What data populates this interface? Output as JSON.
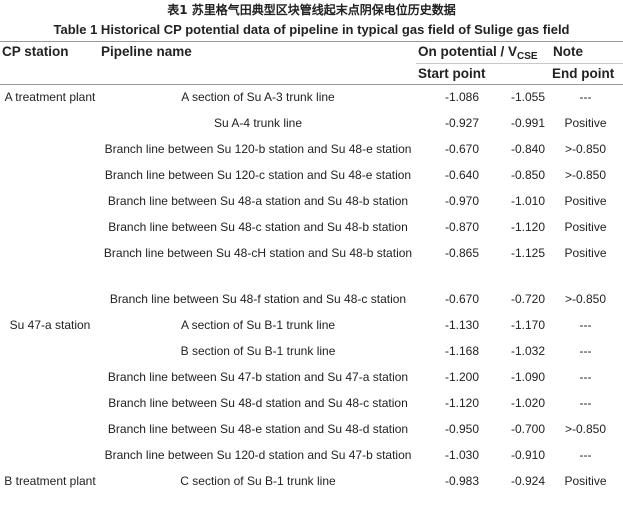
{
  "title_cn": "表1 苏里格气田典型区块管线起末点阴保电位历史数据",
  "title_en": "Table 1 Historical CP potential data of pipeline in typical gas field of Sulige gas field",
  "header": {
    "cp_station": "CP station",
    "pipeline_name": "Pipeline name",
    "on_potential_prefix": "On potential / V",
    "on_potential_sub": "CSE",
    "note": "Note",
    "start_point": "Start point",
    "end_point": "End point"
  },
  "rows": [
    {
      "station": "A treatment plant",
      "name": "A section of Su A-3 trunk line",
      "start": "-1.086",
      "end": "-1.055",
      "note": "---"
    },
    {
      "station": "",
      "name": "Su A-4 trunk line",
      "start": "-0.927",
      "end": "-0.991",
      "note": "Positive"
    },
    {
      "station": "",
      "name": "Branch line between Su 120-b station and Su 48-e station",
      "start": "-0.670",
      "end": "-0.840",
      "note": ">-0.850"
    },
    {
      "station": "",
      "name": "Branch line between Su 120-c station and Su 48-e station",
      "start": "-0.640",
      "end": "-0.850",
      "note": ">-0.850"
    },
    {
      "station": "",
      "name": "Branch line between Su 48-a station and Su 48-b station",
      "start": "-0.970",
      "end": "-1.010",
      "note": "Positive"
    },
    {
      "station": "",
      "name": "Branch line between Su 48-c station and Su 48-b station",
      "start": "-0.870",
      "end": "-1.120",
      "note": "Positive"
    },
    {
      "station": "",
      "name": "Branch line between Su 48-cH station and Su 48-b station",
      "start": "-0.865",
      "end": "-1.125",
      "note": "Positive"
    },
    {
      "station": "",
      "name": "Branch line between Su 48-f station and Su 48-c station",
      "start": "-0.670",
      "end": "-0.720",
      "note": ">-0.850"
    },
    {
      "station": "Su 47-a station",
      "name": "A section of Su B-1 trunk line",
      "start": "-1.130",
      "end": "-1.170",
      "note": "---"
    },
    {
      "station": "",
      "name": "B section of Su B-1 trunk line",
      "start": "-1.168",
      "end": "-1.032",
      "note": "---"
    },
    {
      "station": "",
      "name": "Branch line between Su 47-b station and Su 47-a station",
      "start": "-1.200",
      "end": "-1.090",
      "note": "---"
    },
    {
      "station": "",
      "name": "Branch line between Su 48-d station and Su 48-c station",
      "start": "-1.120",
      "end": "-1.020",
      "note": "---"
    },
    {
      "station": "",
      "name": "Branch line between Su 48-e station and Su 48-d station",
      "start": "-0.950",
      "end": "-0.700",
      "note": ">-0.850"
    },
    {
      "station": "",
      "name": "Branch line between Su 120-d station and Su 47-b station",
      "start": "-1.030",
      "end": "-0.910",
      "note": "---"
    },
    {
      "station": "B treatment plant",
      "name": "C section of Su B-1 trunk line",
      "start": "-0.983",
      "end": "-0.924",
      "note": "Positive"
    }
  ]
}
